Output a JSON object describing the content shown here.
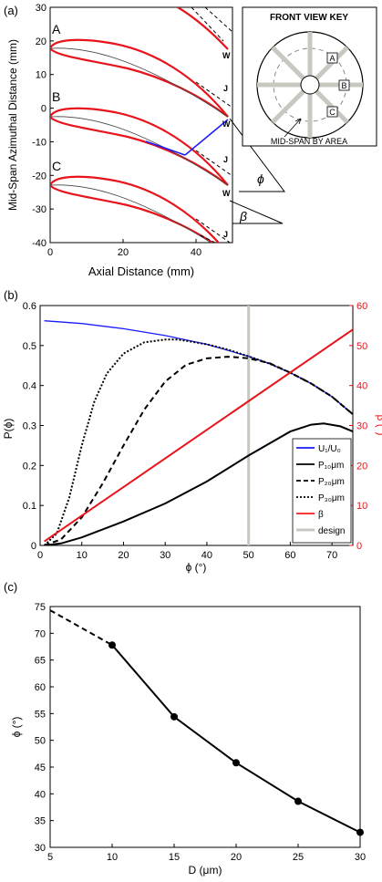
{
  "panel_a": {
    "label": "(a)",
    "ylabel": "Mid-Span Azimuthal Distance (mm)",
    "xlabel": "Axial Distance (mm)",
    "xticks": [
      "0",
      "20",
      "40"
    ],
    "yticks": [
      "30",
      "20",
      "10",
      "0",
      "-10",
      "-20",
      "-30",
      "-40"
    ],
    "blade_labels": [
      "A",
      "B",
      "C"
    ],
    "wake_labels": [
      "W",
      "J",
      "W",
      "J",
      "W",
      "J"
    ],
    "phi_symbol": "ϕ",
    "beta_symbol": "β",
    "key": {
      "title": "FRONT VIEW KEY",
      "labels": [
        "A",
        "B",
        "C"
      ],
      "caption": "MID-SPAN BY AREA"
    }
  },
  "panel_b": {
    "label": "(b)",
    "ylabel_left": "P(ϕ)",
    "ylabel_right": "β (°)",
    "xlabel": "ϕ (°)",
    "xticks": [
      "0",
      "10",
      "20",
      "30",
      "40",
      "50",
      "60",
      "70"
    ],
    "yticks_left": [
      "0",
      "0.1",
      "0.2",
      "0.3",
      "0.4",
      "0.5",
      "0.6"
    ],
    "yticks_right": [
      "0",
      "10",
      "20",
      "30",
      "40",
      "50",
      "60"
    ],
    "legend": [
      {
        "name": "U₁/U₀",
        "color": "#1a1aff",
        "style": "solid"
      },
      {
        "name": "P₁₀μm",
        "color": "#000000",
        "style": "solid"
      },
      {
        "name": "P₂₀μm",
        "color": "#000000",
        "style": "dashed"
      },
      {
        "name": "P₃₀μm",
        "color": "#000000",
        "style": "dotted"
      },
      {
        "name": "β",
        "color": "#ff1a1a",
        "style": "solid"
      },
      {
        "name": "design",
        "color": "#c8c8c0",
        "style": "solid"
      }
    ]
  },
  "chart_data": [
    {
      "type": "line",
      "panel": "b",
      "xlabel": "ϕ (°)",
      "ylabel": "P(ϕ)",
      "ylabel_right": "β (°)",
      "xlim": [
        0,
        75
      ],
      "ylim": [
        0,
        0.6
      ],
      "ylim_right": [
        0,
        60
      ],
      "legend_placement": "bottom-right",
      "design_phi": 50,
      "series": [
        {
          "name": "U₁/U₀",
          "axis": "left",
          "x": [
            1,
            10,
            20,
            30,
            40,
            50,
            55,
            60,
            65,
            70,
            75
          ],
          "y": [
            0.562,
            0.555,
            0.542,
            0.525,
            0.503,
            0.473,
            0.455,
            0.432,
            0.405,
            0.372,
            0.328
          ]
        },
        {
          "name": "P₁₀μm",
          "axis": "left",
          "x": [
            1,
            5,
            10,
            20,
            30,
            40,
            50,
            60,
            65,
            68,
            72,
            75
          ],
          "y": [
            0.0,
            0.005,
            0.02,
            0.06,
            0.105,
            0.16,
            0.225,
            0.285,
            0.302,
            0.305,
            0.298,
            0.285
          ]
        },
        {
          "name": "P₂₀μm",
          "axis": "left",
          "x": [
            1,
            5,
            10,
            15,
            20,
            25,
            30,
            35,
            40,
            45,
            48,
            50,
            55,
            60,
            65,
            70,
            75
          ],
          "y": [
            0.0,
            0.015,
            0.07,
            0.155,
            0.25,
            0.34,
            0.41,
            0.452,
            0.468,
            0.472,
            0.47,
            0.468,
            0.456,
            0.432,
            0.405,
            0.372,
            0.328
          ]
        },
        {
          "name": "P₃₀μm",
          "axis": "left",
          "x": [
            1,
            4,
            7,
            10,
            13,
            16,
            20,
            25,
            30,
            33,
            35,
            40,
            45,
            50,
            55,
            60,
            65,
            70,
            75
          ],
          "y": [
            0.0,
            0.03,
            0.12,
            0.25,
            0.36,
            0.43,
            0.48,
            0.508,
            0.515,
            0.515,
            0.512,
            0.503,
            0.49,
            0.473,
            0.455,
            0.432,
            0.405,
            0.372,
            0.328
          ]
        },
        {
          "name": "β",
          "axis": "right",
          "x": [
            1,
            75
          ],
          "y": [
            1,
            54
          ]
        }
      ]
    },
    {
      "type": "line",
      "panel": "c",
      "xlabel": "D (μm)",
      "ylabel": "ϕ (°)",
      "xlim": [
        5,
        30
      ],
      "ylim": [
        30,
        75
      ],
      "xticks": [
        "5",
        "10",
        "15",
        "20",
        "25",
        "30"
      ],
      "yticks": [
        "30",
        "35",
        "40",
        "45",
        "50",
        "55",
        "60",
        "65",
        "70",
        "75"
      ],
      "series": [
        {
          "style": "dashed",
          "x": [
            5,
            10
          ],
          "y": [
            74.3,
            67.8
          ]
        },
        {
          "style": "solid-markers",
          "x": [
            10,
            15,
            20,
            25,
            30
          ],
          "y": [
            67.8,
            54.4,
            45.8,
            38.6,
            32.8
          ]
        }
      ]
    }
  ],
  "panel_c": {
    "label": "(c)",
    "ylabel": "ϕ (°)",
    "xlabel": "D (μm)"
  }
}
